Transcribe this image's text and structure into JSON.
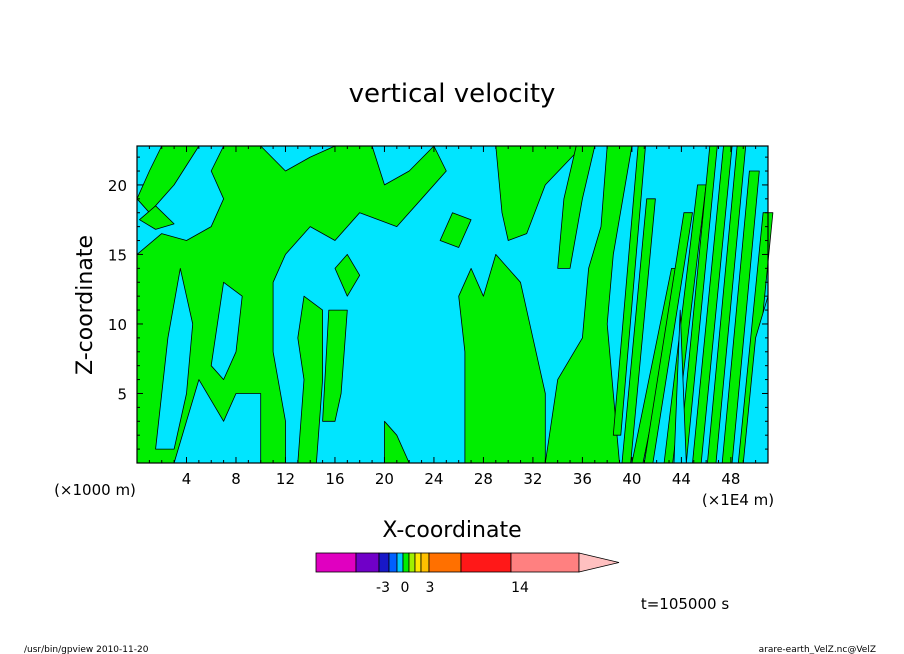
{
  "chart_data": {
    "type": "contour",
    "title": "vertical velocity",
    "xlabel": "X-coordinate",
    "ylabel": "Z-coordinate",
    "x_unit_left": "(×1000 m)",
    "x_unit_right": "(×1E4 m)",
    "xlim": [
      0,
      51
    ],
    "ylim": [
      0,
      22.8
    ],
    "xticks": [
      {
        "value": 4,
        "label": "4"
      },
      {
        "value": 8,
        "label": "8"
      },
      {
        "value": 12,
        "label": "12"
      },
      {
        "value": 16,
        "label": "16"
      },
      {
        "value": 20,
        "label": "20"
      },
      {
        "value": 24,
        "label": "24"
      },
      {
        "value": 28,
        "label": "28"
      },
      {
        "value": 32,
        "label": "32"
      },
      {
        "value": 36,
        "label": "36"
      },
      {
        "value": 40,
        "label": "40"
      },
      {
        "value": 44,
        "label": "44"
      },
      {
        "value": 48,
        "label": "48"
      }
    ],
    "yticks": [
      {
        "value": 5,
        "label": "5"
      },
      {
        "value": 10,
        "label": "10"
      },
      {
        "value": 15,
        "label": "15"
      },
      {
        "value": 20,
        "label": "20"
      }
    ],
    "colors": {
      "negative_fill": "#00e5ff",
      "positive_fill": "#00ee00",
      "contour_line": "#000000"
    },
    "colorbar": {
      "segments": [
        {
          "color": "#e000c0"
        },
        {
          "color": "#7000c8"
        },
        {
          "color": "#1818c8"
        },
        {
          "color": "#0060ff"
        },
        {
          "color": "#00c8ff"
        },
        {
          "color": "#00ee00"
        },
        {
          "color": "#a0f000"
        },
        {
          "color": "#ffe800"
        },
        {
          "color": "#ffc000"
        },
        {
          "color": "#ff7000"
        },
        {
          "color": "#ff1818"
        },
        {
          "color": "#ff8080"
        }
      ],
      "extension_color": "#ffc0c0",
      "labels": [
        "-3",
        "0",
        "3",
        "14"
      ]
    },
    "time_label": "t=105000 s"
  },
  "footer": {
    "left": "/usr/bin/gpview  2010-11-20",
    "right": "arare-earth_VelZ.nc@VelZ"
  }
}
